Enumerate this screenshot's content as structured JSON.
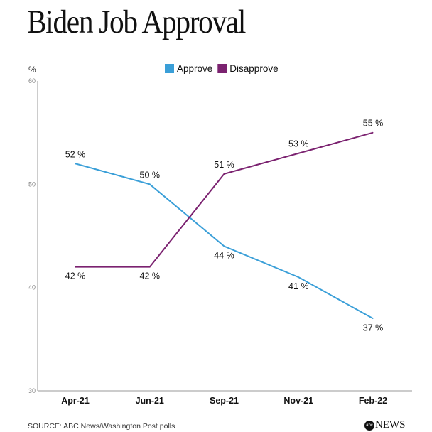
{
  "title": "Biden Job Approval",
  "source": "SOURCE: ABC News/Washington Post polls",
  "logo": "abc NEWS",
  "chart_data": {
    "type": "line",
    "ylabel": "%",
    "ylim": [
      30,
      60
    ],
    "yticks": [
      30,
      40,
      50,
      60
    ],
    "categories": [
      "Apr-21",
      "Jun-21",
      "Sep-21",
      "Nov-21",
      "Feb-22"
    ],
    "legend_position": "top",
    "grid": false,
    "series": [
      {
        "name": "Approve",
        "color": "#3a9fd8",
        "values": [
          52,
          50,
          44,
          41,
          37
        ],
        "labels": [
          "52 %",
          "50 %",
          "44 %",
          "41 %",
          "37 %"
        ]
      },
      {
        "name": "Disapprove",
        "color": "#7b2270",
        "values": [
          42,
          42,
          51,
          53,
          55
        ],
        "labels": [
          "42 %",
          "42 %",
          "51 %",
          "53 %",
          "55 %"
        ]
      }
    ]
  }
}
